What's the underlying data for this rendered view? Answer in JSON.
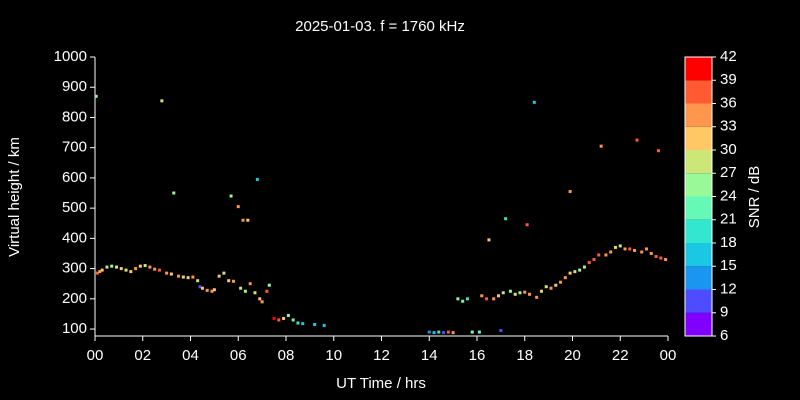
{
  "chart_data": {
    "type": "scatter",
    "title": "2025-01-03. f = 1760 kHz",
    "x_label": "UT Time / hrs",
    "y_label": "Virtual height / km",
    "xlim": [
      0,
      24
    ],
    "xticks": [
      {
        "value": 0,
        "label": "00"
      },
      {
        "value": 2,
        "label": "02"
      },
      {
        "value": 4,
        "label": "04"
      },
      {
        "value": 6,
        "label": "06"
      },
      {
        "value": 8,
        "label": "08"
      },
      10,
      12,
      14,
      16,
      18,
      20,
      22,
      {
        "value": 24,
        "label": "00"
      }
    ],
    "ylim": [
      77,
      1000
    ],
    "yticks": [
      100,
      200,
      300,
      400,
      500,
      600,
      700,
      800,
      900,
      1000
    ],
    "colorbar": {
      "label": "SNR / dB",
      "lim": [
        6,
        42
      ],
      "ticks": [
        6,
        9,
        12,
        15,
        18,
        21,
        24,
        27,
        30,
        33,
        36,
        39,
        42
      ],
      "colors": [
        "#8000ff",
        "#4d4dff",
        "#1a96f0",
        "#1ac8e4",
        "#33e6d0",
        "#66f8b6",
        "#99f898",
        "#cce678",
        "#ffc864",
        "#ff964e",
        "#ff5a32",
        "#ff0000"
      ]
    },
    "x": [
      0.05,
      0.1,
      0.2,
      0.3,
      0.5,
      0.7,
      0.9,
      1.1,
      1.3,
      1.5,
      1.7,
      1.9,
      2.1,
      2.3,
      2.5,
      2.7,
      2.8,
      3.0,
      3.2,
      3.3,
      3.5,
      3.7,
      3.9,
      4.1,
      4.3,
      4.4,
      4.5,
      4.7,
      4.9,
      5.0,
      5.2,
      5.4,
      5.6,
      5.7,
      5.8,
      6.0,
      6.1,
      6.2,
      6.4,
      6.5,
      6.3,
      6.7,
      6.8,
      6.9,
      7.0,
      7.2,
      7.3,
      7.5,
      7.7,
      7.9,
      8.1,
      8.3,
      8.5,
      8.7,
      9.2,
      9.6,
      14.0,
      14.2,
      14.4,
      14.6,
      14.8,
      15.0,
      15.2,
      15.4,
      15.6,
      15.8,
      16.1,
      16.2,
      16.4,
      16.5,
      16.7,
      16.9,
      17.0,
      17.1,
      17.2,
      17.4,
      17.6,
      17.8,
      18.0,
      18.1,
      18.2,
      18.4,
      18.5,
      18.7,
      18.9,
      19.1,
      19.3,
      19.5,
      19.7,
      19.9,
      19.9,
      20.1,
      20.3,
      20.5,
      20.7,
      20.9,
      21.1,
      21.2,
      21.4,
      21.6,
      21.8,
      22.0,
      22.2,
      22.4,
      22.6,
      22.7,
      22.9,
      23.1,
      23.3,
      23.5,
      23.6,
      23.7,
      23.9
    ],
    "values": [
      870,
      285,
      290,
      295,
      305,
      308,
      305,
      300,
      295,
      290,
      300,
      308,
      310,
      305,
      298,
      295,
      855,
      285,
      282,
      550,
      275,
      272,
      270,
      272,
      260,
      240,
      235,
      228,
      225,
      230,
      275,
      285,
      260,
      540,
      258,
      505,
      235,
      460,
      460,
      250,
      225,
      220,
      595,
      200,
      190,
      225,
      245,
      135,
      130,
      135,
      145,
      130,
      120,
      118,
      115,
      112,
      90,
      88,
      90,
      88,
      90,
      88,
      200,
      192,
      200,
      90,
      90,
      210,
      200,
      395,
      200,
      210,
      95,
      220,
      465,
      225,
      215,
      220,
      222,
      445,
      215,
      850,
      205,
      225,
      240,
      235,
      245,
      255,
      270,
      285,
      555,
      290,
      295,
      305,
      320,
      330,
      345,
      705,
      345,
      355,
      370,
      375,
      365,
      365,
      360,
      725,
      355,
      365,
      350,
      340,
      690,
      335,
      330
    ],
    "snr": [
      24,
      36,
      33,
      30,
      27,
      24,
      27,
      30,
      27,
      30,
      33,
      30,
      27,
      33,
      33,
      36,
      27,
      33,
      30,
      24,
      33,
      27,
      30,
      33,
      27,
      9,
      30,
      33,
      33,
      30,
      30,
      27,
      30,
      24,
      33,
      33,
      27,
      33,
      30,
      33,
      24,
      27,
      15,
      30,
      33,
      36,
      24,
      39,
      36,
      30,
      24,
      21,
      18,
      15,
      15,
      15,
      12,
      15,
      18,
      9,
      36,
      33,
      24,
      21,
      18,
      24,
      21,
      33,
      36,
      30,
      33,
      30,
      9,
      27,
      18,
      24,
      27,
      24,
      33,
      36,
      33,
      15,
      33,
      30,
      27,
      33,
      30,
      33,
      33,
      30,
      33,
      27,
      24,
      27,
      36,
      36,
      36,
      33,
      33,
      33,
      30,
      27,
      33,
      36,
      33,
      36,
      33,
      33,
      33,
      36,
      36,
      36,
      33
    ]
  }
}
